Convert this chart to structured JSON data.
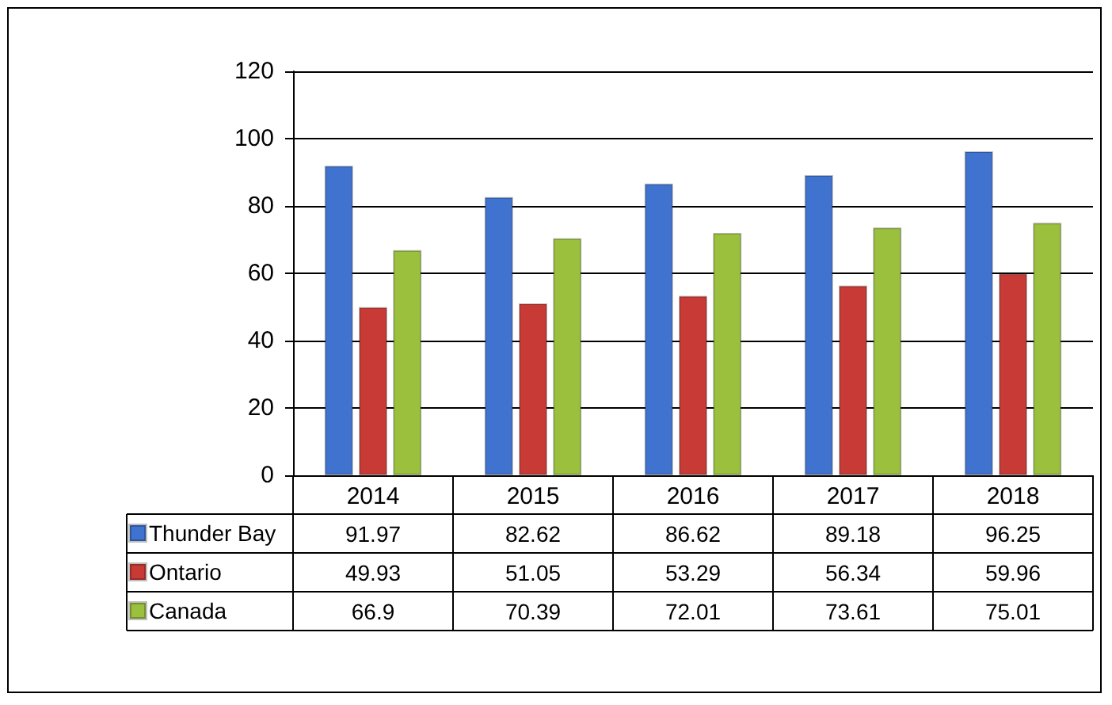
{
  "chart_data": {
    "type": "bar",
    "categories": [
      "2014",
      "2015",
      "2016",
      "2017",
      "2018"
    ],
    "series": [
      {
        "name": "Thunder Bay",
        "color": "#3f73cf",
        "values": [
          91.97,
          82.62,
          86.62,
          89.18,
          96.25
        ]
      },
      {
        "name": "Ontario",
        "color": "#c83a36",
        "values": [
          49.93,
          51.05,
          53.29,
          56.34,
          59.96
        ]
      },
      {
        "name": "Canada",
        "color": "#9ac03e",
        "values": [
          66.9,
          70.39,
          72.01,
          73.61,
          75.01
        ]
      }
    ],
    "ylim": [
      0,
      120
    ],
    "yticks": [
      0,
      20,
      40,
      60,
      80,
      100,
      120
    ],
    "grid": "y",
    "legend": "bottom",
    "data_labels": true
  }
}
